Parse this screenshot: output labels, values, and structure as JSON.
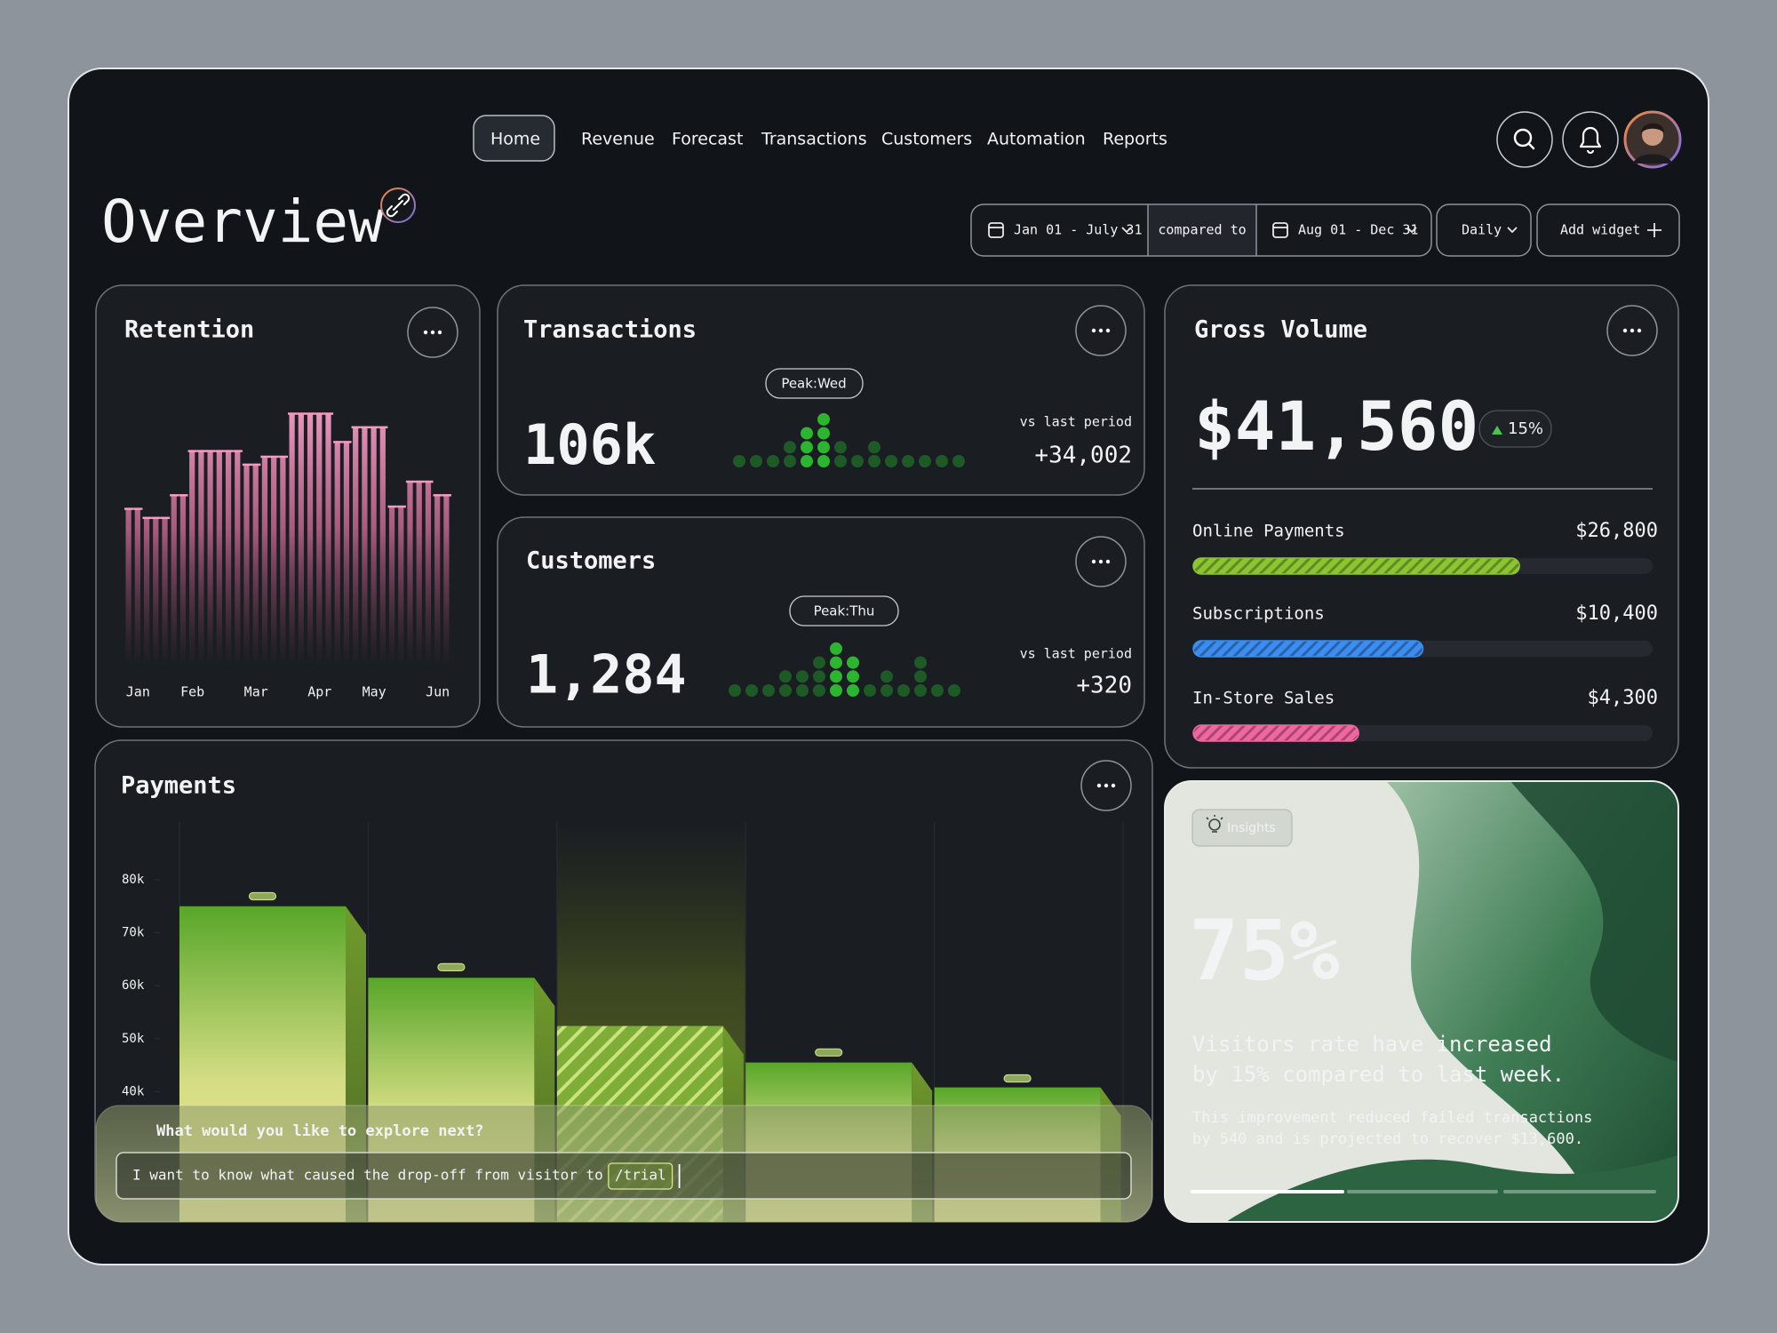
{
  "nav": {
    "items": [
      "Home",
      "Revenue",
      "Forecast",
      "Transactions",
      "Customers",
      "Automation",
      "Reports"
    ]
  },
  "header": {
    "title": "Overview"
  },
  "filters": {
    "range": "Jan 01 - July 31",
    "compare_label": "compared to",
    "compare_range": "Aug 01 - Dec 31",
    "interval": "Daily",
    "add_widget": "Add widget"
  },
  "transactions": {
    "title": "Transactions",
    "total": "106k",
    "peak": "Peak:Wed",
    "compare_label": "vs last period",
    "change": "+34,002"
  },
  "customers": {
    "title": "Customers",
    "total": "1,284",
    "peak": "Peak:Thu",
    "compare_label": "vs last period",
    "change": "+320"
  },
  "gross_volume": {
    "title": "Gross Volume",
    "total": "$41,560",
    "change": "15%",
    "xlim": [
      0,
      100
    ],
    "rows": [
      {
        "label": "Online Payments",
        "amount": "$26,800",
        "progress": 71,
        "color": "#8bc531"
      },
      {
        "label": "Subscriptions",
        "amount": "$10,400",
        "progress": 50,
        "color": "#3b8df0"
      },
      {
        "label": "In-Store Sales",
        "amount": "$4,300",
        "progress": 36,
        "color": "#f0679f"
      }
    ]
  },
  "insights": {
    "tag": "Insights",
    "value": "75%",
    "headline": [
      "Visitors rate have increased",
      "by 15% compared to last week."
    ],
    "body": [
      "This improvement reduced failed transactions",
      "by 540 and is projected to recover $13,600."
    ]
  },
  "assistant": {
    "prompt": "What would you like to explore next?",
    "input": "I want to know what caused the drop-off from visitor to",
    "command": "/trial"
  },
  "chart_data": [
    {
      "type": "bar",
      "style": "stripes",
      "title": "Retention",
      "color": "#f59ac2",
      "ylim": [
        0,
        240
      ],
      "categories": [
        null,
        "Jan",
        null,
        null,
        null,
        null,
        null,
        "Feb",
        null,
        null,
        null,
        null,
        null,
        null,
        "Mar",
        null,
        null,
        null,
        null,
        null,
        null,
        "Apr",
        null,
        null,
        null,
        null,
        null,
        "May",
        null,
        null,
        null,
        null,
        null,
        null,
        "Jun",
        null
      ],
      "values": [
        136,
        136,
        128,
        128,
        128,
        148,
        148,
        187,
        187,
        187,
        187,
        187,
        187,
        175,
        175,
        182,
        182,
        182,
        220,
        220,
        220,
        220,
        220,
        195,
        195,
        208,
        208,
        208,
        208,
        138,
        138,
        160,
        160,
        160,
        148,
        148
      ]
    },
    {
      "type": "dot",
      "color": "#1d5a25",
      "highlight_color": "#2cb52f",
      "highlight": [
        4,
        5
      ],
      "values": [
        1,
        1,
        1,
        2,
        3,
        4,
        2,
        1,
        2,
        1,
        1,
        1,
        1,
        1
      ]
    },
    {
      "type": "dot",
      "color": "#1d5a25",
      "highlight_color": "#2cb52f",
      "highlight": [
        6,
        7
      ],
      "values": [
        1,
        1,
        1,
        2,
        2,
        3,
        4,
        3,
        1,
        2,
        1,
        3,
        1,
        1
      ]
    },
    {
      "type": "bar",
      "style": "blocks",
      "title": "Payments",
      "highlight": 2,
      "ylim": [
        15000,
        90000
      ],
      "yticks": [
        {
          "value": 40000,
          "label": "40k"
        },
        {
          "value": 50000,
          "label": "50k"
        },
        {
          "value": 60000,
          "label": "60k"
        },
        {
          "value": 70000,
          "label": "70k"
        },
        {
          "value": 80000,
          "label": "80k"
        }
      ],
      "values": [
        75000,
        61500,
        52400,
        45500,
        40800
      ],
      "markers": [
        76900,
        63500,
        null,
        47400,
        42500
      ]
    }
  ]
}
